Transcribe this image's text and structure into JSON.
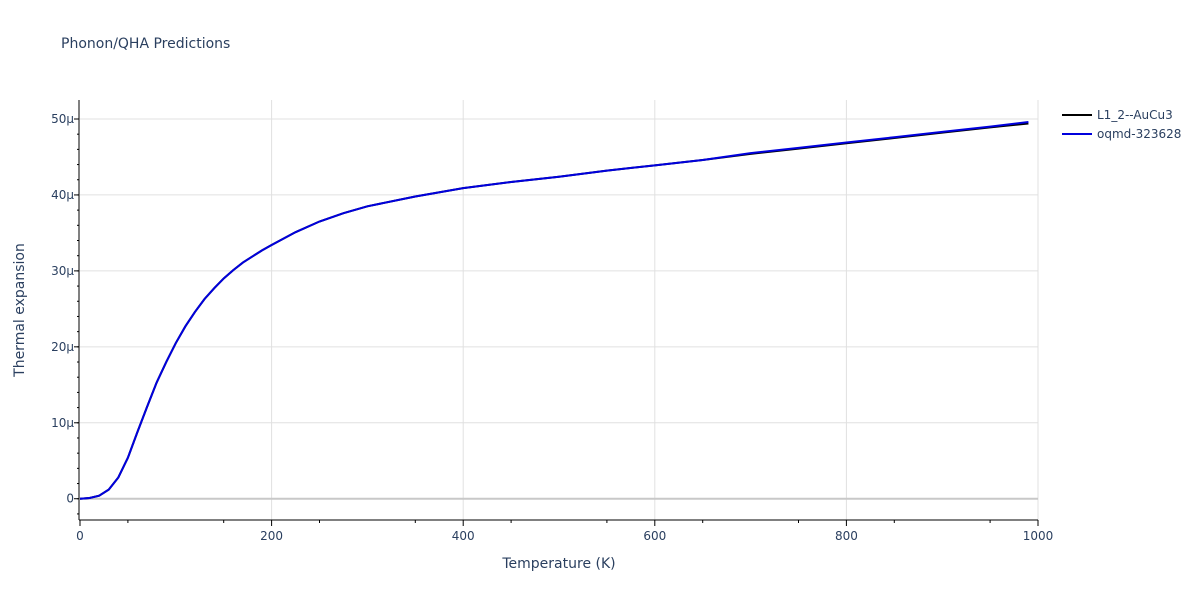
{
  "chart_data": {
    "type": "line",
    "title": "Phonon/QHA Predictions",
    "xlabel": "Temperature (K)",
    "ylabel": "Thermal expansion",
    "xlim": [
      0,
      1000
    ],
    "ylim": [
      -2.8e-06,
      5.25e-05
    ],
    "x_ticks": [
      0,
      200,
      400,
      600,
      800,
      1000
    ],
    "x_tick_labels": [
      "0",
      "200",
      "400",
      "600",
      "800",
      "1000"
    ],
    "y_ticks": [
      0,
      1e-05,
      2e-05,
      3e-05,
      4e-05,
      5e-05
    ],
    "y_tick_labels": [
      "0",
      "10μ",
      "20μ",
      "30μ",
      "40μ",
      "50μ"
    ],
    "grid": true,
    "legend_position": "top-right",
    "series": [
      {
        "name": "L1_2--AuCu3",
        "color": "#000000",
        "x": [
          0,
          10,
          20,
          30,
          40,
          50,
          60,
          70,
          80,
          90,
          100,
          110,
          120,
          130,
          140,
          150,
          160,
          170,
          180,
          190,
          200,
          225,
          250,
          275,
          300,
          350,
          400,
          450,
          500,
          550,
          600,
          650,
          700,
          750,
          800,
          850,
          900,
          950,
          990
        ],
        "y": [
          0,
          1e-07,
          4e-07,
          1.2e-06,
          2.8e-06,
          5.4e-06,
          8.8e-06,
          1.21e-05,
          1.53e-05,
          1.8e-05,
          2.05e-05,
          2.27e-05,
          2.46e-05,
          2.63e-05,
          2.77e-05,
          2.9e-05,
          3.01e-05,
          3.11e-05,
          3.19e-05,
          3.27e-05,
          3.34e-05,
          3.51e-05,
          3.65e-05,
          3.76e-05,
          3.85e-05,
          3.98e-05,
          4.09e-05,
          4.17e-05,
          4.24e-05,
          4.32e-05,
          4.39e-05,
          4.46e-05,
          4.54e-05,
          4.61e-05,
          4.68e-05,
          4.75e-05,
          4.82e-05,
          4.89e-05,
          4.94e-05
        ]
      },
      {
        "name": "oqmd-323628",
        "color": "#0000dd",
        "x": [
          0,
          10,
          20,
          30,
          40,
          50,
          60,
          70,
          80,
          90,
          100,
          110,
          120,
          130,
          140,
          150,
          160,
          170,
          180,
          190,
          200,
          225,
          250,
          275,
          300,
          350,
          400,
          450,
          500,
          550,
          600,
          650,
          700,
          750,
          800,
          850,
          900,
          950,
          990
        ],
        "y": [
          0,
          1e-07,
          4e-07,
          1.2e-06,
          2.8e-06,
          5.4e-06,
          8.8e-06,
          1.21e-05,
          1.53e-05,
          1.8e-05,
          2.05e-05,
          2.27e-05,
          2.46e-05,
          2.63e-05,
          2.77e-05,
          2.9e-05,
          3.01e-05,
          3.11e-05,
          3.19e-05,
          3.27e-05,
          3.34e-05,
          3.51e-05,
          3.65e-05,
          3.76e-05,
          3.85e-05,
          3.98e-05,
          4.09e-05,
          4.17e-05,
          4.24e-05,
          4.32e-05,
          4.39e-05,
          4.46e-05,
          4.55e-05,
          4.62e-05,
          4.69e-05,
          4.76e-05,
          4.83e-05,
          4.9e-05,
          4.96e-05
        ]
      }
    ]
  }
}
